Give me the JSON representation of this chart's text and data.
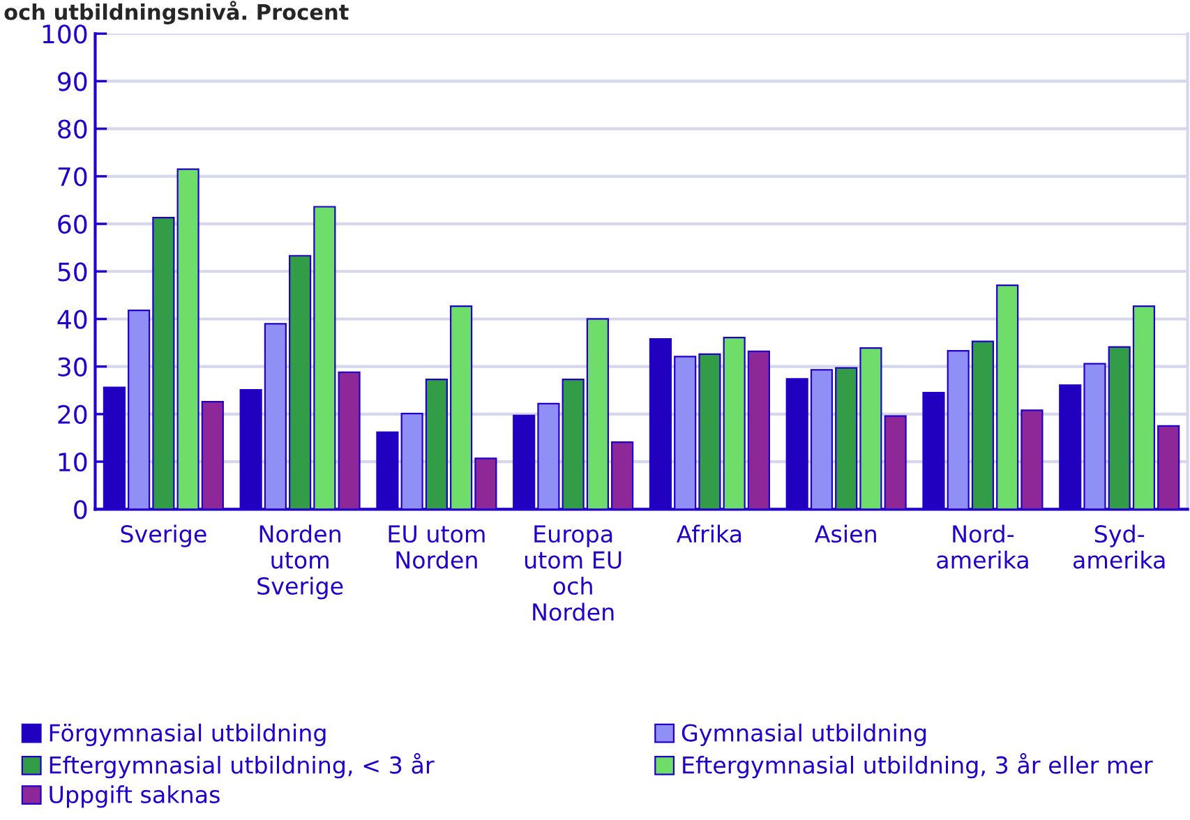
{
  "chart_data": {
    "type": "bar",
    "title": "och utbildningsnivå. Procent",
    "categories": [
      "Sverige",
      "Norden\nutom\nSverige",
      "EU utom\nNorden",
      "Europa\nutom EU\noch\nNorden",
      "Afrika",
      "Asien",
      "Nord-\namerika",
      "Syd-\namerika"
    ],
    "series": [
      {
        "name": "Förgymnasial utbildning",
        "color": "#2200c0",
        "values": [
          25.6,
          25.1,
          16.2,
          19.7,
          35.8,
          27.4,
          24.5,
          26.1
        ]
      },
      {
        "name": "Gymnasial utbildning",
        "color": "#8f8ff5",
        "values": [
          41.8,
          39.0,
          20.1,
          22.2,
          32.1,
          29.3,
          33.3,
          30.6
        ]
      },
      {
        "name": "Eftergymnasial utbildning, < 3 år",
        "color": "#339c46",
        "values": [
          61.3,
          53.3,
          27.3,
          27.3,
          32.6,
          29.7,
          35.3,
          34.1
        ]
      },
      {
        "name": "Eftergymnasial utbildning, 3 år eller mer",
        "color": "#6edd6a",
        "values": [
          71.5,
          63.6,
          42.7,
          40.0,
          36.1,
          33.9,
          47.1,
          42.7
        ]
      },
      {
        "name": "Uppgift saknas",
        "color": "#8e2899",
        "values": [
          22.6,
          28.8,
          10.7,
          14.1,
          33.2,
          19.6,
          20.8,
          17.5
        ]
      }
    ],
    "ylim": [
      0,
      100
    ],
    "yticks": [
      0,
      10,
      20,
      30,
      40,
      50,
      60,
      70,
      80,
      90,
      100
    ],
    "grid": "y",
    "legend": "bottom"
  }
}
